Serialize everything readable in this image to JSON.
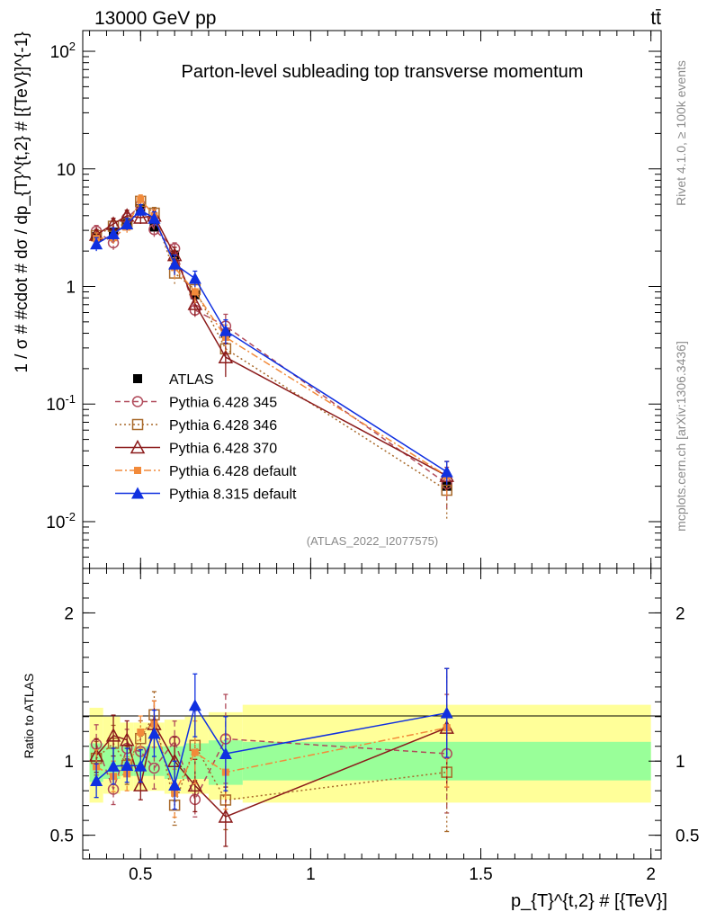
{
  "chart_data": {
    "type": "line",
    "header_left": "13000 GeV pp",
    "header_right": "tt̄",
    "title": "Parton-level subleading top transverse momentum",
    "analysis_label": "(ATLAS_2022_I2077575)",
    "side_label_top": "Rivet 4.1.0, ≥ 100k events",
    "side_label_bottom": "mcplots.cern.ch [arXiv:1306.3436]",
    "ylabel_main": "1 / σ # #cdot # dσ / dp_{T}^{t,2} # [{TeV}]^{-1}",
    "ylabel_ratio": "Ratio to ATLAS",
    "xlabel": "p_{T}^{t,2} # [{TeV}]",
    "x_range": [
      0.33,
      2.03
    ],
    "y_range_main": [
      0.004,
      150
    ],
    "y_range_ratio": [
      0.34,
      2.3
    ],
    "x_ticks": [
      0.5,
      1,
      1.5,
      2
    ],
    "x_tick_labels": [
      "0.5",
      "1",
      "1.5",
      "2"
    ],
    "y_ticks_main_labels": [
      "10^-2",
      "10^-1",
      "1",
      "10",
      "10^2"
    ],
    "y_ticks_ratio": [
      0.5,
      1,
      2
    ],
    "y_tick_labels_ratio": [
      "0.5",
      "1",
      "2"
    ],
    "x": [
      0.37,
      0.42,
      0.46,
      0.5,
      0.54,
      0.6,
      0.66,
      0.75,
      1.4
    ],
    "reference": {
      "name": "ATLAS",
      "values": [
        2.65,
        2.9,
        3.5,
        4.6,
        3.2,
        1.85,
        0.85,
        0.4,
        0.02
      ],
      "band_inner": [
        {
          "x0": 0.35,
          "x1": 0.39,
          "lo": 0.86,
          "hi": 1.12
        },
        {
          "x0": 0.39,
          "x1": 0.44,
          "lo": 0.88,
          "hi": 1.1
        },
        {
          "x0": 0.44,
          "x1": 0.48,
          "lo": 0.9,
          "hi": 1.1
        },
        {
          "x0": 0.48,
          "x1": 0.52,
          "lo": 0.9,
          "hi": 1.1
        },
        {
          "x0": 0.52,
          "x1": 0.57,
          "lo": 0.9,
          "hi": 1.1
        },
        {
          "x0": 0.57,
          "x1": 0.63,
          "lo": 0.88,
          "hi": 1.1
        },
        {
          "x0": 0.63,
          "x1": 0.7,
          "lo": 0.88,
          "hi": 1.12
        },
        {
          "x0": 0.7,
          "x1": 0.8,
          "lo": 0.84,
          "hi": 1.14
        },
        {
          "x0": 0.8,
          "x1": 2.0,
          "lo": 0.87,
          "hi": 1.13
        }
      ],
      "band_outer": [
        {
          "x0": 0.35,
          "x1": 0.39,
          "lo": 0.72,
          "hi": 1.36
        },
        {
          "x0": 0.39,
          "x1": 0.44,
          "lo": 0.78,
          "hi": 1.3
        },
        {
          "x0": 0.44,
          "x1": 0.48,
          "lo": 0.8,
          "hi": 1.26
        },
        {
          "x0": 0.48,
          "x1": 0.52,
          "lo": 0.8,
          "hi": 1.26
        },
        {
          "x0": 0.52,
          "x1": 0.57,
          "lo": 0.8,
          "hi": 1.26
        },
        {
          "x0": 0.57,
          "x1": 0.63,
          "lo": 0.78,
          "hi": 1.28
        },
        {
          "x0": 0.63,
          "x1": 0.7,
          "lo": 0.78,
          "hi": 1.3
        },
        {
          "x0": 0.7,
          "x1": 0.8,
          "lo": 0.74,
          "hi": 1.33
        },
        {
          "x0": 0.8,
          "x1": 2.0,
          "lo": 0.72,
          "hi": 1.38
        }
      ]
    },
    "series": [
      {
        "name": "Pythia 6.428 345",
        "color": "#b04a5a",
        "dash": "6,4",
        "marker": "circle-open",
        "values": [
          2.95,
          2.35,
          3.8,
          4.9,
          3.05,
          2.1,
          0.63,
          0.46,
          0.021
        ],
        "errors": [
          0.35,
          0.3,
          0.45,
          0.5,
          0.45,
          0.25,
          0.1,
          0.12,
          0.008
        ]
      },
      {
        "name": "Pythia 6.428 346",
        "color": "#a8692a",
        "dash": "2,3",
        "marker": "square-open",
        "values": [
          2.7,
          3.25,
          3.4,
          5.3,
          4.2,
          1.3,
          0.94,
          0.295,
          0.0185
        ],
        "errors": [
          0.3,
          0.35,
          0.45,
          0.55,
          0.5,
          0.25,
          0.2,
          0.08,
          0.008
        ]
      },
      {
        "name": "Pythia 6.428 370",
        "color": "#8b1a1a",
        "dash": "",
        "marker": "triangle-open",
        "values": [
          2.75,
          3.4,
          4.0,
          3.85,
          4.0,
          1.85,
          0.71,
          0.25,
          0.0245
        ],
        "errors": [
          0.3,
          0.4,
          0.45,
          0.45,
          0.5,
          0.3,
          0.15,
          0.08,
          0.008
        ]
      },
      {
        "name": "Pythia 6.428 default",
        "color": "#f28a3a",
        "dash": "8,3,2,3",
        "marker": "square-filled",
        "values": [
          2.55,
          2.6,
          3.2,
          5.5,
          4.0,
          1.45,
          0.9,
          0.37,
          0.0245
        ],
        "errors": [
          0.3,
          0.3,
          0.4,
          0.5,
          0.5,
          0.3,
          0.18,
          0.1,
          0.008
        ]
      },
      {
        "name": "Pythia 8.315 default",
        "color": "#1030e0",
        "dash": "",
        "marker": "triangle-filled",
        "values": [
          2.3,
          2.8,
          3.4,
          4.45,
          3.8,
          1.55,
          1.17,
          0.42,
          0.0265
        ],
        "errors": [
          0.3,
          0.35,
          0.4,
          0.5,
          0.5,
          0.3,
          0.18,
          0.1,
          0.006
        ]
      }
    ],
    "legend_position": "middle-left"
  }
}
